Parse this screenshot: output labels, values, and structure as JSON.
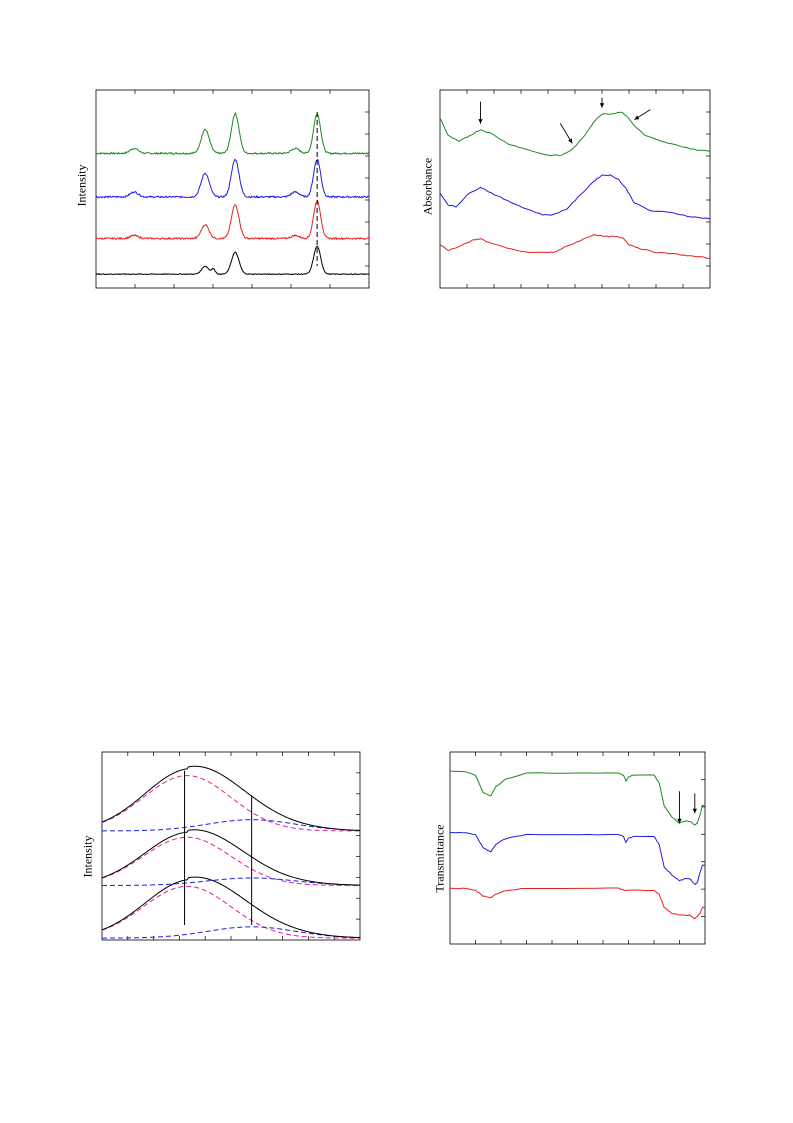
{
  "colors": {
    "green": "#1e8a1e",
    "blue": "#1f1fe0",
    "red": "#e52222",
    "black": "#000000",
    "magenta_dash": "#e0209a",
    "blue_dash": "#1f1fe0"
  },
  "chart_data": [
    {
      "id": "xrd",
      "type": "line",
      "title": "",
      "xlabel": "",
      "ylabel": "Intensity",
      "xlim": [
        0,
        100
      ],
      "ylim": [
        0,
        100
      ],
      "grid": false,
      "legend": "none",
      "ticks_visible_labels": false,
      "annotations": [
        {
          "kind": "dashed-vertical-line",
          "x": 81
        }
      ],
      "series": [
        {
          "color": "green",
          "baseline": 68,
          "noise": 0.8,
          "peaks": [
            [
              14,
              2.5,
              1.5
            ],
            [
              40,
              12,
              1.5
            ],
            [
              51,
              20,
              1.4
            ],
            [
              73,
              2.5,
              1.5
            ],
            [
              81,
              20,
              1.3
            ]
          ]
        },
        {
          "color": "blue",
          "baseline": 46,
          "noise": 0.8,
          "peaks": [
            [
              14,
              2.5,
              1.5
            ],
            [
              40,
              12,
              1.5
            ],
            [
              51,
              19,
              1.4
            ],
            [
              73,
              2.5,
              1.5
            ],
            [
              81,
              19,
              1.3
            ]
          ]
        },
        {
          "color": "red",
          "baseline": 25,
          "noise": 0.8,
          "peaks": [
            [
              14,
              1.5,
              1.5
            ],
            [
              40,
              7,
              1.4
            ],
            [
              51,
              17,
              1.4
            ],
            [
              73,
              1.5,
              1.5
            ],
            [
              81,
              19,
              1.3
            ]
          ]
        },
        {
          "color": "black",
          "baseline": 7,
          "noise": 0.4,
          "peaks": [
            [
              40,
              4,
              1.3
            ],
            [
              43,
              2.5,
              0.7
            ],
            [
              51,
              11,
              1.4
            ],
            [
              81,
              14,
              1.3
            ]
          ]
        }
      ]
    },
    {
      "id": "uvvis",
      "type": "line",
      "title": "",
      "xlabel": "",
      "ylabel": "Absorbance",
      "xlim": [
        0,
        100
      ],
      "ylim": [
        0,
        100
      ],
      "grid": false,
      "legend": "none",
      "annotations": [
        {
          "kind": "arrow",
          "x": 15,
          "direction": "down"
        },
        {
          "kind": "arrow",
          "x": 49,
          "direction": "down-right"
        },
        {
          "kind": "arrow",
          "x": 60,
          "direction": "down"
        },
        {
          "kind": "arrow",
          "x": 72,
          "direction": "down-left"
        }
      ],
      "series": [
        {
          "color": "green",
          "points": [
            [
              0,
              86
            ],
            [
              3,
              77
            ],
            [
              7,
              74
            ],
            [
              11,
              77
            ],
            [
              15,
              80
            ],
            [
              19,
              78
            ],
            [
              25,
              73
            ],
            [
              32,
              70
            ],
            [
              40,
              67
            ],
            [
              45,
              67
            ],
            [
              49,
              70
            ],
            [
              53,
              76
            ],
            [
              57,
              84
            ],
            [
              60,
              88
            ],
            [
              64,
              88
            ],
            [
              67,
              89
            ],
            [
              69,
              87
            ],
            [
              72,
              82
            ],
            [
              76,
              77
            ],
            [
              82,
              74
            ],
            [
              88,
              72
            ],
            [
              94,
              70
            ],
            [
              100,
              69
            ]
          ]
        },
        {
          "color": "blue",
          "points": [
            [
              0,
              48
            ],
            [
              3,
              42
            ],
            [
              6,
              41
            ],
            [
              10,
              47
            ],
            [
              15,
              51
            ],
            [
              19,
              48
            ],
            [
              25,
              44
            ],
            [
              32,
              40
            ],
            [
              38,
              37
            ],
            [
              42,
              37
            ],
            [
              47,
              40
            ],
            [
              52,
              47
            ],
            [
              57,
              54
            ],
            [
              60,
              57
            ],
            [
              63,
              57
            ],
            [
              66,
              55
            ],
            [
              69,
              50
            ],
            [
              72,
              43
            ],
            [
              78,
              39
            ],
            [
              86,
              38
            ],
            [
              93,
              36
            ],
            [
              100,
              35
            ]
          ]
        },
        {
          "color": "red",
          "points": [
            [
              0,
              22
            ],
            [
              3,
              19
            ],
            [
              7,
              21
            ],
            [
              12,
              24
            ],
            [
              15,
              25
            ],
            [
              18,
              23
            ],
            [
              25,
              20
            ],
            [
              32,
              18
            ],
            [
              38,
              18
            ],
            [
              42,
              18
            ],
            [
              47,
              21
            ],
            [
              52,
              24
            ],
            [
              57,
              27
            ],
            [
              61,
              26
            ],
            [
              65,
              26
            ],
            [
              68,
              25
            ],
            [
              70,
              22
            ],
            [
              74,
              20
            ],
            [
              80,
              18
            ],
            [
              88,
              17
            ],
            [
              94,
              16
            ],
            [
              100,
              15
            ]
          ]
        }
      ]
    },
    {
      "id": "fit",
      "type": "line",
      "title": "",
      "xlabel": "",
      "ylabel": "Intensity",
      "xlim": [
        0,
        100
      ],
      "ylim": [
        0,
        100
      ],
      "grid": false,
      "legend": "none",
      "annotations": [
        {
          "kind": "vertical-line",
          "x": 32,
          "y_top": 90
        },
        {
          "kind": "vertical-line",
          "x": 58,
          "y_top": 77
        }
      ],
      "groups": [
        {
          "baseline": 58,
          "main_amp": 31,
          "main_center": 33,
          "main_sigma": 17,
          "side_amp": 6,
          "side_center": 58,
          "side_sigma": 17
        },
        {
          "baseline": 29,
          "main_amp": 27,
          "main_center": 33,
          "main_sigma": 17,
          "side_amp": 4,
          "side_center": 58,
          "side_sigma": 17
        },
        {
          "baseline": 1,
          "main_amp": 29,
          "main_center": 33,
          "main_sigma": 17,
          "side_amp": 6,
          "side_center": 58,
          "side_sigma": 17
        }
      ]
    },
    {
      "id": "ftir",
      "type": "line",
      "title": "",
      "xlabel": "",
      "ylabel": "Transmittance",
      "xlim": [
        0,
        100
      ],
      "ylim": [
        0,
        100
      ],
      "grid": false,
      "legend": "none",
      "annotations": [
        {
          "kind": "arrow",
          "x": 90,
          "direction": "down"
        },
        {
          "kind": "arrow",
          "x": 96,
          "direction": "down"
        }
      ],
      "series": [
        {
          "color": "green",
          "points": [
            [
              0,
              90
            ],
            [
              5,
              90
            ],
            [
              10,
              88
            ],
            [
              13,
              79
            ],
            [
              16,
              77
            ],
            [
              18,
              82
            ],
            [
              22,
              86
            ],
            [
              30,
              89
            ],
            [
              50,
              89
            ],
            [
              66,
              89
            ],
            [
              68,
              88
            ],
            [
              69,
              85
            ],
            [
              70,
              87
            ],
            [
              72,
              88
            ],
            [
              80,
              88
            ],
            [
              82,
              84
            ],
            [
              84,
              72
            ],
            [
              87,
              66
            ],
            [
              90,
              63
            ],
            [
              92,
              64
            ],
            [
              94,
              64
            ],
            [
              96,
              62
            ],
            [
              97,
              63
            ],
            [
              98,
              67
            ],
            [
              99,
              72
            ],
            [
              100,
              72
            ]
          ]
        },
        {
          "color": "blue",
          "points": [
            [
              0,
              58
            ],
            [
              5,
              58
            ],
            [
              10,
              57
            ],
            [
              13,
              50
            ],
            [
              16,
              48
            ],
            [
              18,
              52
            ],
            [
              22,
              55
            ],
            [
              30,
              57
            ],
            [
              50,
              57
            ],
            [
              66,
              57
            ],
            [
              68,
              56
            ],
            [
              69,
              53
            ],
            [
              70,
              55
            ],
            [
              72,
              56
            ],
            [
              80,
              56
            ],
            [
              82,
              52
            ],
            [
              84,
              40
            ],
            [
              87,
              36
            ],
            [
              90,
              33
            ],
            [
              92,
              34
            ],
            [
              94,
              34
            ],
            [
              96,
              31
            ],
            [
              97,
              32
            ],
            [
              98,
              37
            ],
            [
              99,
              41
            ],
            [
              100,
              41
            ]
          ]
        },
        {
          "color": "red",
          "points": [
            [
              0,
              29
            ],
            [
              5,
              29
            ],
            [
              10,
              28
            ],
            [
              13,
              25
            ],
            [
              16,
              24
            ],
            [
              18,
              26
            ],
            [
              22,
              28
            ],
            [
              30,
              29
            ],
            [
              50,
              29
            ],
            [
              66,
              29
            ],
            [
              68,
              28
            ],
            [
              70,
              28
            ],
            [
              80,
              28
            ],
            [
              82,
              26
            ],
            [
              84,
              19
            ],
            [
              87,
              16
            ],
            [
              90,
              15
            ],
            [
              92,
              15
            ],
            [
              94,
              15
            ],
            [
              96,
              13
            ],
            [
              98,
              16
            ],
            [
              99,
              19
            ],
            [
              100,
              19
            ]
          ]
        }
      ]
    }
  ]
}
